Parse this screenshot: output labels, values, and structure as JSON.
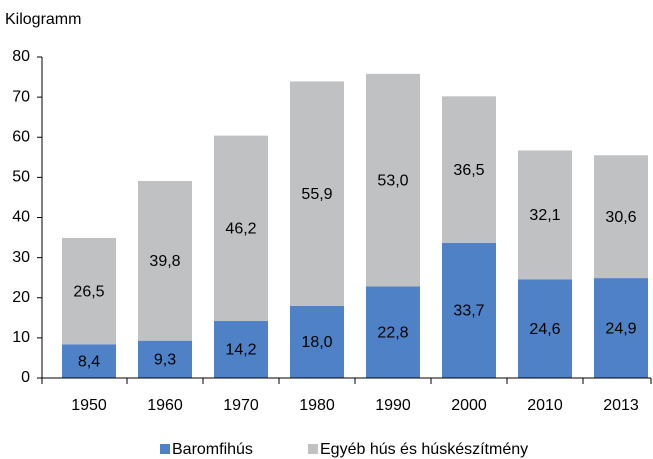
{
  "chart_data": {
    "type": "stacked_bar",
    "y_label": "Kilogramm",
    "categories": [
      "1950",
      "1960",
      "1970",
      "1980",
      "1990",
      "2000",
      "2010",
      "2013"
    ],
    "series": [
      {
        "name": "Baromfihús",
        "color": "#4f81c7",
        "values": [
          8.4,
          9.3,
          14.2,
          18.0,
          22.8,
          33.7,
          24.6,
          24.9
        ],
        "value_labels": [
          "8,4",
          "9,3",
          "14,2",
          "18,0",
          "22,8",
          "33,7",
          "24,6",
          "24,9"
        ]
      },
      {
        "name": "Egyéb hús és húskészítmény",
        "color": "#bfc1c3",
        "values": [
          26.5,
          39.8,
          46.2,
          55.9,
          53.0,
          36.5,
          32.1,
          30.6
        ],
        "value_labels": [
          "26,5",
          "39,8",
          "46,2",
          "55,9",
          "53,0",
          "36,5",
          "32,1",
          "30,6"
        ]
      }
    ],
    "ylim": [
      0,
      80
    ],
    "yticks": [
      0,
      10,
      20,
      30,
      40,
      50,
      60,
      70,
      80
    ],
    "legend": "bottom"
  }
}
